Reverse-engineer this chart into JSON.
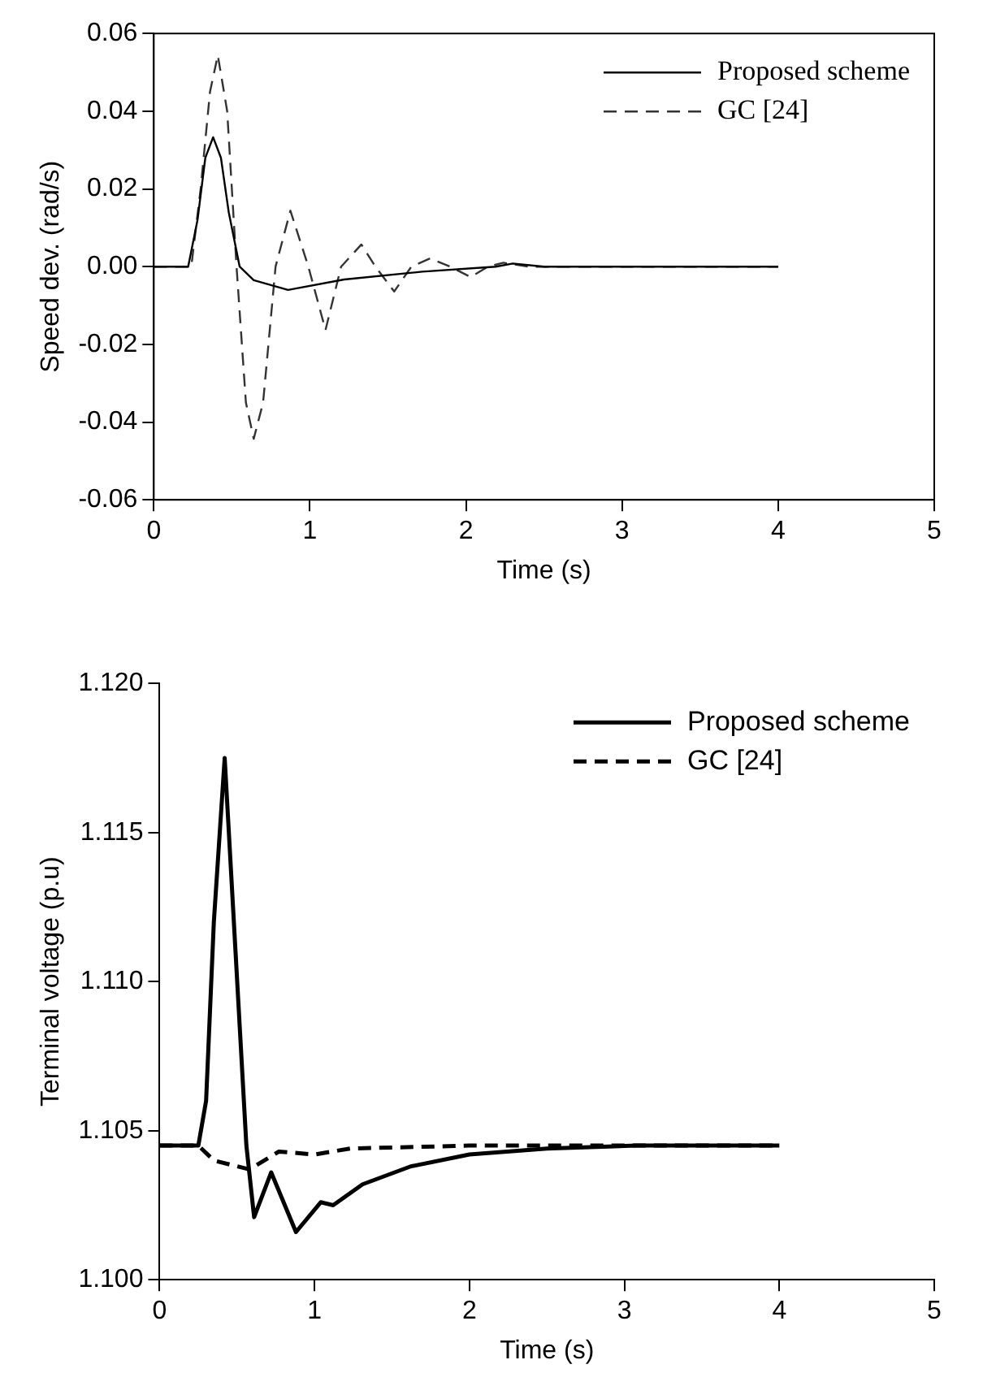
{
  "chart_data": [
    {
      "type": "line",
      "xlabel": "Time (s)",
      "ylabel": "Speed dev. (rad/s)",
      "xlim": [
        0,
        5
      ],
      "ylim": [
        -0.06,
        0.06
      ],
      "xticks": [
        0,
        1,
        2,
        3,
        4,
        5
      ],
      "yticks": [
        {
          "value": -0.06,
          "label": "-0.06"
        },
        {
          "value": -0.04,
          "label": "-0.04"
        },
        {
          "value": -0.02,
          "label": "-0.02"
        },
        {
          "value": 0,
          "label": "0.00"
        },
        {
          "value": 0.02,
          "label": "0.02"
        },
        {
          "value": 0.04,
          "label": "0.04"
        },
        {
          "value": 0.06,
          "label": "0.06"
        }
      ],
      "grid": false,
      "legend": "top right",
      "marker": "none",
      "series": [
        {
          "name": "Proposed scheme",
          "color": "#000000",
          "line_style": "solid",
          "x": [
            0,
            0.22,
            0.28,
            0.33,
            0.38,
            0.43,
            0.48,
            0.55,
            0.64,
            0.86,
            1.22,
            1.72,
            2.19,
            2.3,
            2.5,
            3,
            4
          ],
          "values": [
            0,
            0,
            0.012,
            0.028,
            0.0333,
            0.028,
            0.014,
            0,
            -0.0035,
            -0.006,
            -0.0033,
            -0.0013,
            0,
            0.0008,
            0,
            0,
            0
          ]
        },
        {
          "name": "GC [24]",
          "color": "#333333",
          "line_style": "dashed",
          "x": [
            0,
            0.24,
            0.3,
            0.36,
            0.41,
            0.47,
            0.53,
            0.59,
            0.64,
            0.7,
            0.78,
            0.875,
            0.99,
            1.1,
            1.2,
            1.33,
            1.42,
            1.54,
            1.65,
            1.77,
            1.9,
            2.03,
            2.14,
            2.24,
            2.4,
            3,
            4
          ],
          "values": [
            0,
            0,
            0.02,
            0.045,
            0.0544,
            0.04,
            0,
            -0.035,
            -0.0443,
            -0.035,
            0,
            0.0144,
            0,
            -0.0163,
            0,
            0.0057,
            0,
            -0.0064,
            0,
            0.0021,
            0,
            -0.0027,
            0,
            0.001,
            0,
            0,
            0
          ]
        }
      ]
    },
    {
      "type": "line",
      "xlabel": "Time (s)",
      "ylabel": "Terminal voltage (p.u)",
      "xlim": [
        0,
        5
      ],
      "ylim": [
        1.1,
        1.12
      ],
      "xticks": [
        0,
        1,
        2,
        3,
        4,
        5
      ],
      "yticks": [
        {
          "value": 1.1,
          "label": "1.100"
        },
        {
          "value": 1.105,
          "label": "1.105"
        },
        {
          "value": 1.11,
          "label": "1.110"
        },
        {
          "value": 1.115,
          "label": "1.115"
        },
        {
          "value": 1.12,
          "label": "1.120"
        }
      ],
      "grid": false,
      "legend": "top right",
      "marker": "none",
      "series": [
        {
          "name": "Proposed scheme",
          "color": "#000000",
          "line_style": "solid",
          "x": [
            0,
            0.25,
            0.3,
            0.35,
            0.42,
            0.49,
            0.56,
            0.61,
            0.72,
            0.88,
            1.04,
            1.12,
            1.31,
            1.62,
            2,
            2.5,
            3.08,
            4
          ],
          "values": [
            1.1045,
            1.1045,
            1.106,
            1.112,
            1.1175,
            1.111,
            1.1045,
            1.1021,
            1.1036,
            1.1016,
            1.1026,
            1.1025,
            1.1032,
            1.1038,
            1.1042,
            1.1044,
            1.1045,
            1.1045
          ]
        },
        {
          "name": "GC [24]",
          "color": "#000000",
          "line_style": "dashed",
          "x": [
            0,
            0.25,
            0.35,
            0.58,
            0.77,
            1,
            1.23,
            2,
            3,
            4
          ],
          "values": [
            1.1045,
            1.1045,
            1.104,
            1.1037,
            1.1043,
            1.1042,
            1.1044,
            1.1045,
            1.1045,
            1.1045
          ]
        }
      ]
    }
  ]
}
